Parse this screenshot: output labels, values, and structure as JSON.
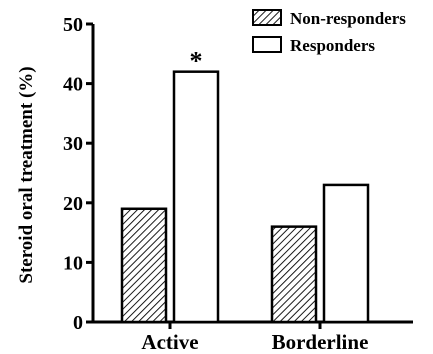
{
  "chart_data": {
    "type": "bar",
    "categories": [
      "Active",
      "Borderline"
    ],
    "series": [
      {
        "name": "Non-responders",
        "values": [
          19,
          16
        ],
        "pattern": "hatched"
      },
      {
        "name": "Responders",
        "values": [
          42,
          23
        ],
        "pattern": "open"
      }
    ],
    "ylabel": "Steroid oral treatment (%)",
    "ylim": [
      0,
      50
    ],
    "yticks": [
      0,
      10,
      20,
      30,
      40,
      50
    ],
    "annotations": [
      {
        "text": "*",
        "category": "Active",
        "series": "Responders"
      }
    ],
    "grid": false,
    "legend_position": "top-right",
    "colors": {
      "axis": "#000000",
      "open_fill": "#ffffff",
      "hatch": "#000000"
    }
  }
}
